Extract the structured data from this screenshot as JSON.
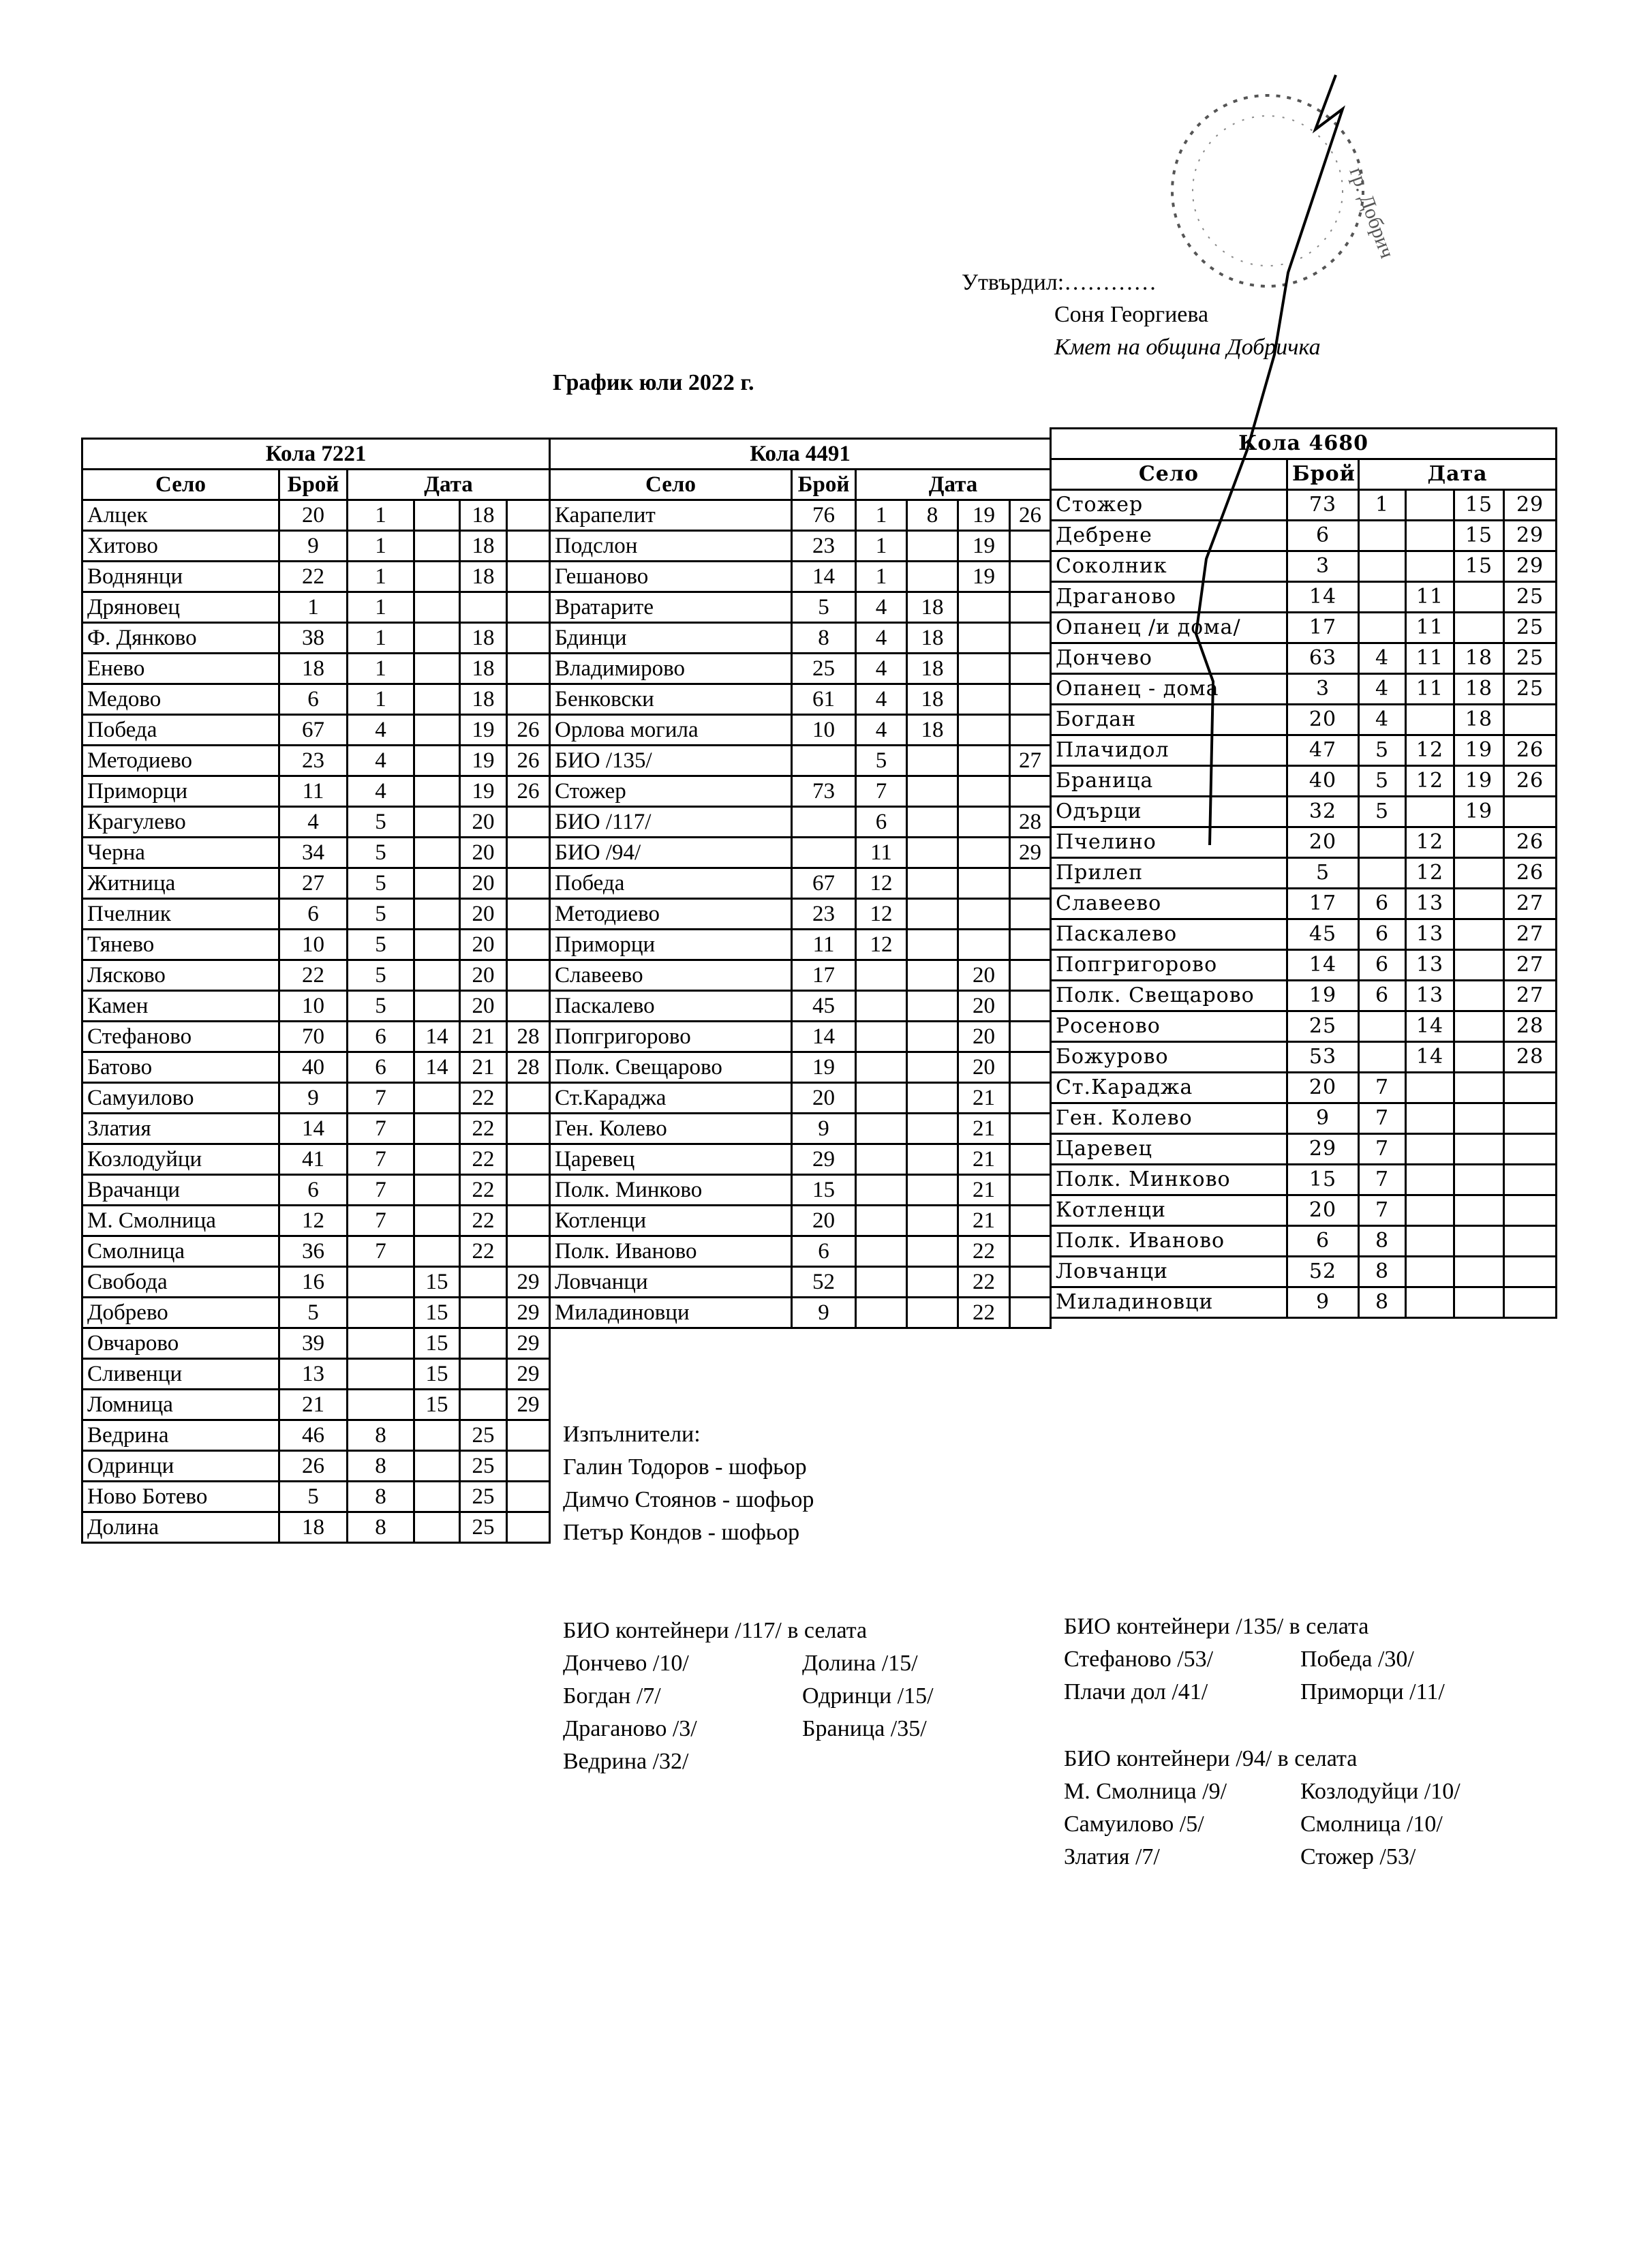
{
  "approval": {
    "approved_label": "Утвърдил:…………",
    "name": "Соня Георгиева",
    "position": "Кмет  на община Добричка",
    "stamp_text": "гр. Добрич"
  },
  "title": "График юли 2022 г.",
  "column_headers": {
    "village": "Село",
    "count": "Брой",
    "date": "Дата"
  },
  "tables": [
    {
      "label": "Кола 7221",
      "rows": [
        [
          "Алцек",
          "20",
          "1",
          "",
          "18",
          ""
        ],
        [
          "Хитово",
          "9",
          "1",
          "",
          "18",
          ""
        ],
        [
          "Воднянци",
          "22",
          "1",
          "",
          "18",
          ""
        ],
        [
          "Дряновец",
          "1",
          "1",
          "",
          "",
          ""
        ],
        [
          "Ф. Дянково",
          "38",
          "1",
          "",
          "18",
          ""
        ],
        [
          "Енево",
          "18",
          "1",
          "",
          "18",
          ""
        ],
        [
          "Медово",
          "6",
          "1",
          "",
          "18",
          ""
        ],
        [
          "Победа",
          "67",
          "4",
          "",
          "19",
          "26"
        ],
        [
          "Методиево",
          "23",
          "4",
          "",
          "19",
          "26"
        ],
        [
          "Приморци",
          "11",
          "4",
          "",
          "19",
          "26"
        ],
        [
          "Крагулево",
          "4",
          "5",
          "",
          "20",
          ""
        ],
        [
          "Черна",
          "34",
          "5",
          "",
          "20",
          ""
        ],
        [
          "Житница",
          "27",
          "5",
          "",
          "20",
          ""
        ],
        [
          "Пчелник",
          "6",
          "5",
          "",
          "20",
          ""
        ],
        [
          "Тянево",
          "10",
          "5",
          "",
          "20",
          ""
        ],
        [
          "Лясково",
          "22",
          "5",
          "",
          "20",
          ""
        ],
        [
          "Камен",
          "10",
          "5",
          "",
          "20",
          ""
        ],
        [
          "Стефаново",
          "70",
          "6",
          "14",
          "21",
          "28"
        ],
        [
          "Батово",
          "40",
          "6",
          "14",
          "21",
          "28"
        ],
        [
          "Самуилово",
          "9",
          "7",
          "",
          "22",
          ""
        ],
        [
          "Златия",
          "14",
          "7",
          "",
          "22",
          ""
        ],
        [
          "Козлодуйци",
          "41",
          "7",
          "",
          "22",
          ""
        ],
        [
          "Врачанци",
          "6",
          "7",
          "",
          "22",
          ""
        ],
        [
          "М. Смолница",
          "12",
          "7",
          "",
          "22",
          ""
        ],
        [
          "Смолница",
          "36",
          "7",
          "",
          "22",
          ""
        ],
        [
          "Свобода",
          "16",
          "",
          "15",
          "",
          "29"
        ],
        [
          "Добрево",
          "5",
          "",
          "15",
          "",
          "29"
        ],
        [
          "Овчарово",
          "39",
          "",
          "15",
          "",
          "29"
        ],
        [
          "Сливенци",
          "13",
          "",
          "15",
          "",
          "29"
        ],
        [
          "Ломница",
          "21",
          "",
          "15",
          "",
          "29"
        ],
        [
          "Ведрина",
          "46",
          "8",
          "",
          "25",
          ""
        ],
        [
          "Одринци",
          "26",
          "8",
          "",
          "25",
          ""
        ],
        [
          "Ново Ботево",
          "5",
          "8",
          "",
          "25",
          ""
        ],
        [
          "Долина",
          "18",
          "8",
          "",
          "25",
          ""
        ]
      ]
    },
    {
      "label": "Кола 4491",
      "rows": [
        [
          "Карапелит",
          "76",
          "1",
          "8",
          "19",
          "26"
        ],
        [
          "Подслон",
          "23",
          "1",
          "",
          "19",
          ""
        ],
        [
          "Гешаново",
          "14",
          "1",
          "",
          "19",
          ""
        ],
        [
          "Вратарите",
          "5",
          "4",
          "18",
          "",
          ""
        ],
        [
          "Бдинци",
          "8",
          "4",
          "18",
          "",
          ""
        ],
        [
          "Владимирово",
          "25",
          "4",
          "18",
          "",
          ""
        ],
        [
          "Бенковски",
          "61",
          "4",
          "18",
          "",
          ""
        ],
        [
          "Орлова могила",
          "10",
          "4",
          "18",
          "",
          ""
        ],
        [
          "БИО /135/",
          "",
          "5",
          "",
          "",
          "27"
        ],
        [
          "Стожер",
          "73",
          "7",
          "",
          "",
          ""
        ],
        [
          "БИО /117/",
          "",
          "6",
          "",
          "",
          "28"
        ],
        [
          "БИО /94/",
          "",
          "11",
          "",
          "",
          "29"
        ],
        [
          "Победа",
          "67",
          "12",
          "",
          "",
          ""
        ],
        [
          "Методиево",
          "23",
          "12",
          "",
          "",
          ""
        ],
        [
          "Приморци",
          "11",
          "12",
          "",
          "",
          ""
        ],
        [
          "Славеево",
          "17",
          "",
          "",
          "20",
          ""
        ],
        [
          "Паскалево",
          "45",
          "",
          "",
          "20",
          ""
        ],
        [
          "Попгригорово",
          "14",
          "",
          "",
          "20",
          ""
        ],
        [
          "Полк. Свещарово",
          "19",
          "",
          "",
          "20",
          ""
        ],
        [
          "Ст.Караджа",
          "20",
          "",
          "",
          "21",
          ""
        ],
        [
          "Ген. Колево",
          "9",
          "",
          "",
          "21",
          ""
        ],
        [
          "Царевец",
          "29",
          "",
          "",
          "21",
          ""
        ],
        [
          "Полк. Минково",
          "15",
          "",
          "",
          "21",
          ""
        ],
        [
          "Котленци",
          "20",
          "",
          "",
          "21",
          ""
        ],
        [
          "Полк. Иваново",
          "6",
          "",
          "",
          "22",
          ""
        ],
        [
          "Ловчанци",
          "52",
          "",
          "",
          "22",
          ""
        ],
        [
          "Миладиновци",
          "9",
          "",
          "",
          "22",
          ""
        ]
      ]
    },
    {
      "label": "Кола 4680",
      "rows": [
        [
          "Стожер",
          "73",
          "1",
          "",
          "15",
          "29"
        ],
        [
          "Дебрене",
          "6",
          "",
          "",
          "15",
          "29"
        ],
        [
          "Соколник",
          "3",
          "",
          "",
          "15",
          "29"
        ],
        [
          "Драганово",
          "14",
          "",
          "11",
          "",
          "25"
        ],
        [
          "Опанец /и дома/",
          "17",
          "",
          "11",
          "",
          "25"
        ],
        [
          "Дончево",
          "63",
          "4",
          "11",
          "18",
          "25"
        ],
        [
          "Опанец - дома",
          "3",
          "4",
          "11",
          "18",
          "25"
        ],
        [
          "Богдан",
          "20",
          "4",
          "",
          "18",
          ""
        ],
        [
          "Плачидол",
          "47",
          "5",
          "12",
          "19",
          "26"
        ],
        [
          "Браница",
          "40",
          "5",
          "12",
          "19",
          "26"
        ],
        [
          "Одърци",
          "32",
          "5",
          "",
          "19",
          ""
        ],
        [
          "Пчелино",
          "20",
          "",
          "12",
          "",
          "26"
        ],
        [
          "Прилеп",
          "5",
          "",
          "12",
          "",
          "26"
        ],
        [
          "Славеево",
          "17",
          "6",
          "13",
          "",
          "27"
        ],
        [
          "Паскалево",
          "45",
          "6",
          "13",
          "",
          "27"
        ],
        [
          "Попгригорово",
          "14",
          "6",
          "13",
          "",
          "27"
        ],
        [
          "Полк. Свещарово",
          "19",
          "6",
          "13",
          "",
          "27"
        ],
        [
          "Росеново",
          "25",
          "",
          "14",
          "",
          "28"
        ],
        [
          "Божурово",
          "53",
          "",
          "14",
          "",
          "28"
        ],
        [
          "Ст.Караджа",
          "20",
          "7",
          "",
          "",
          ""
        ],
        [
          "Ген. Колево",
          "9",
          "7",
          "",
          "",
          ""
        ],
        [
          "Царевец",
          "29",
          "7",
          "",
          "",
          ""
        ],
        [
          "Полк. Минково",
          "15",
          "7",
          "",
          "",
          ""
        ],
        [
          "Котленци",
          "20",
          "7",
          "",
          "",
          ""
        ],
        [
          "Полк. Иваново",
          "6",
          "8",
          "",
          "",
          ""
        ],
        [
          "Ловчанци",
          "52",
          "8",
          "",
          "",
          ""
        ],
        [
          "Миладиновци",
          "9",
          "8",
          "",
          "",
          ""
        ]
      ]
    }
  ],
  "executors": {
    "heading": "Изпълнители:",
    "people": [
      "Галин Тодоров - шофьор",
      "Димчо Стоянов - шофьор",
      "Петър Кондов - шофьор"
    ]
  },
  "bio": [
    {
      "heading": "БИО контейнери /117/ в селата",
      "col1": [
        "Дончево /10/",
        "Богдан /7/",
        "Драганово /3/",
        "Ведрина /32/"
      ],
      "col2": [
        "Долина /15/",
        "Одринци /15/",
        "Браница /35/"
      ]
    },
    {
      "heading": "БИО контейнери /135/ в селата",
      "col1": [
        "Стефаново /53/",
        "Плачи дол /41/"
      ],
      "col2": [
        "Победа /30/",
        "Приморци /11/"
      ]
    },
    {
      "heading": "БИО контейнери /94/ в селата",
      "col1": [
        "М. Смолница /9/",
        "Самуилово /5/",
        "Златия /7/"
      ],
      "col2": [
        "Козлодуйци /10/",
        "Смолница /10/",
        "Стожер /53/"
      ]
    }
  ]
}
